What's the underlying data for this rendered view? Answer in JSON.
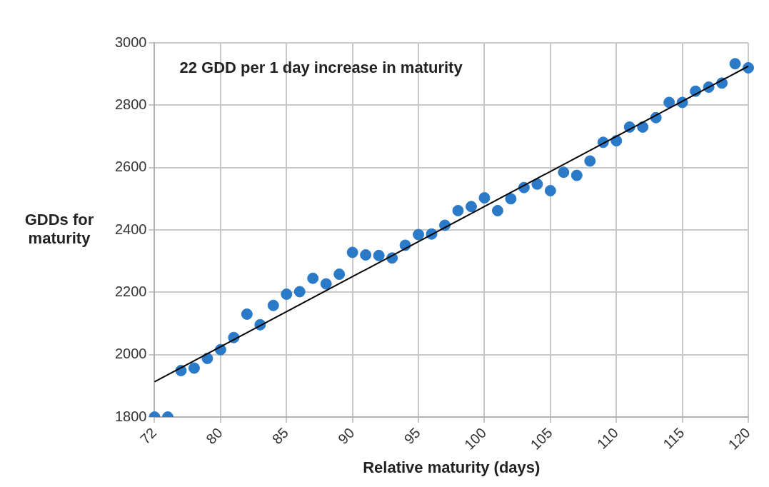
{
  "chart_data": {
    "type": "scatter",
    "xlabel": "Relative maturity (days)",
    "ylabel": "GDDs for\nmaturity",
    "annotations": [
      "22 GDD per 1 day increase in maturity"
    ],
    "categories": [
      "72",
      null,
      null,
      null,
      null,
      "80",
      null,
      null,
      null,
      null,
      "85",
      null,
      null,
      null,
      null,
      "90",
      null,
      null,
      null,
      null,
      "95",
      null,
      null,
      null,
      null,
      "100",
      null,
      null,
      null,
      null,
      "105",
      null,
      null,
      null,
      null,
      "110",
      null,
      null,
      null,
      null,
      "115",
      null,
      null,
      null,
      null,
      "120"
    ],
    "series": [
      {
        "type": "scatter",
        "color": "#2a7ac8",
        "values": [
          1800,
          1800,
          1949,
          1957,
          1988,
          2016,
          2055,
          2130,
          2096,
          2158,
          2194,
          2202,
          2245,
          2227,
          2258,
          2328,
          2320,
          2318,
          2310,
          2351,
          2385,
          2387,
          2415,
          2462,
          2475,
          2503,
          2462,
          2500,
          2536,
          2547,
          2526,
          2585,
          2575,
          2621,
          2681,
          2686,
          2730,
          2730,
          2760,
          2809,
          2809,
          2845,
          2858,
          2871,
          2933,
          2920
        ]
      },
      {
        "type": "line",
        "color": "#000000",
        "marker": "none",
        "values": [
          1913,
          null,
          null,
          null,
          null,
          null,
          null,
          null,
          null,
          null,
          null,
          null,
          null,
          null,
          null,
          null,
          null,
          null,
          null,
          null,
          null,
          null,
          null,
          null,
          null,
          null,
          null,
          null,
          null,
          null,
          null,
          null,
          null,
          null,
          null,
          null,
          null,
          null,
          null,
          null,
          null,
          null,
          null,
          null,
          null,
          2925
        ]
      }
    ],
    "ylim": [
      1800,
      3000
    ],
    "yticks": [
      1800,
      2000,
      2200,
      2400,
      2600,
      2800,
      3000
    ],
    "grid": true,
    "marker": "circle"
  }
}
